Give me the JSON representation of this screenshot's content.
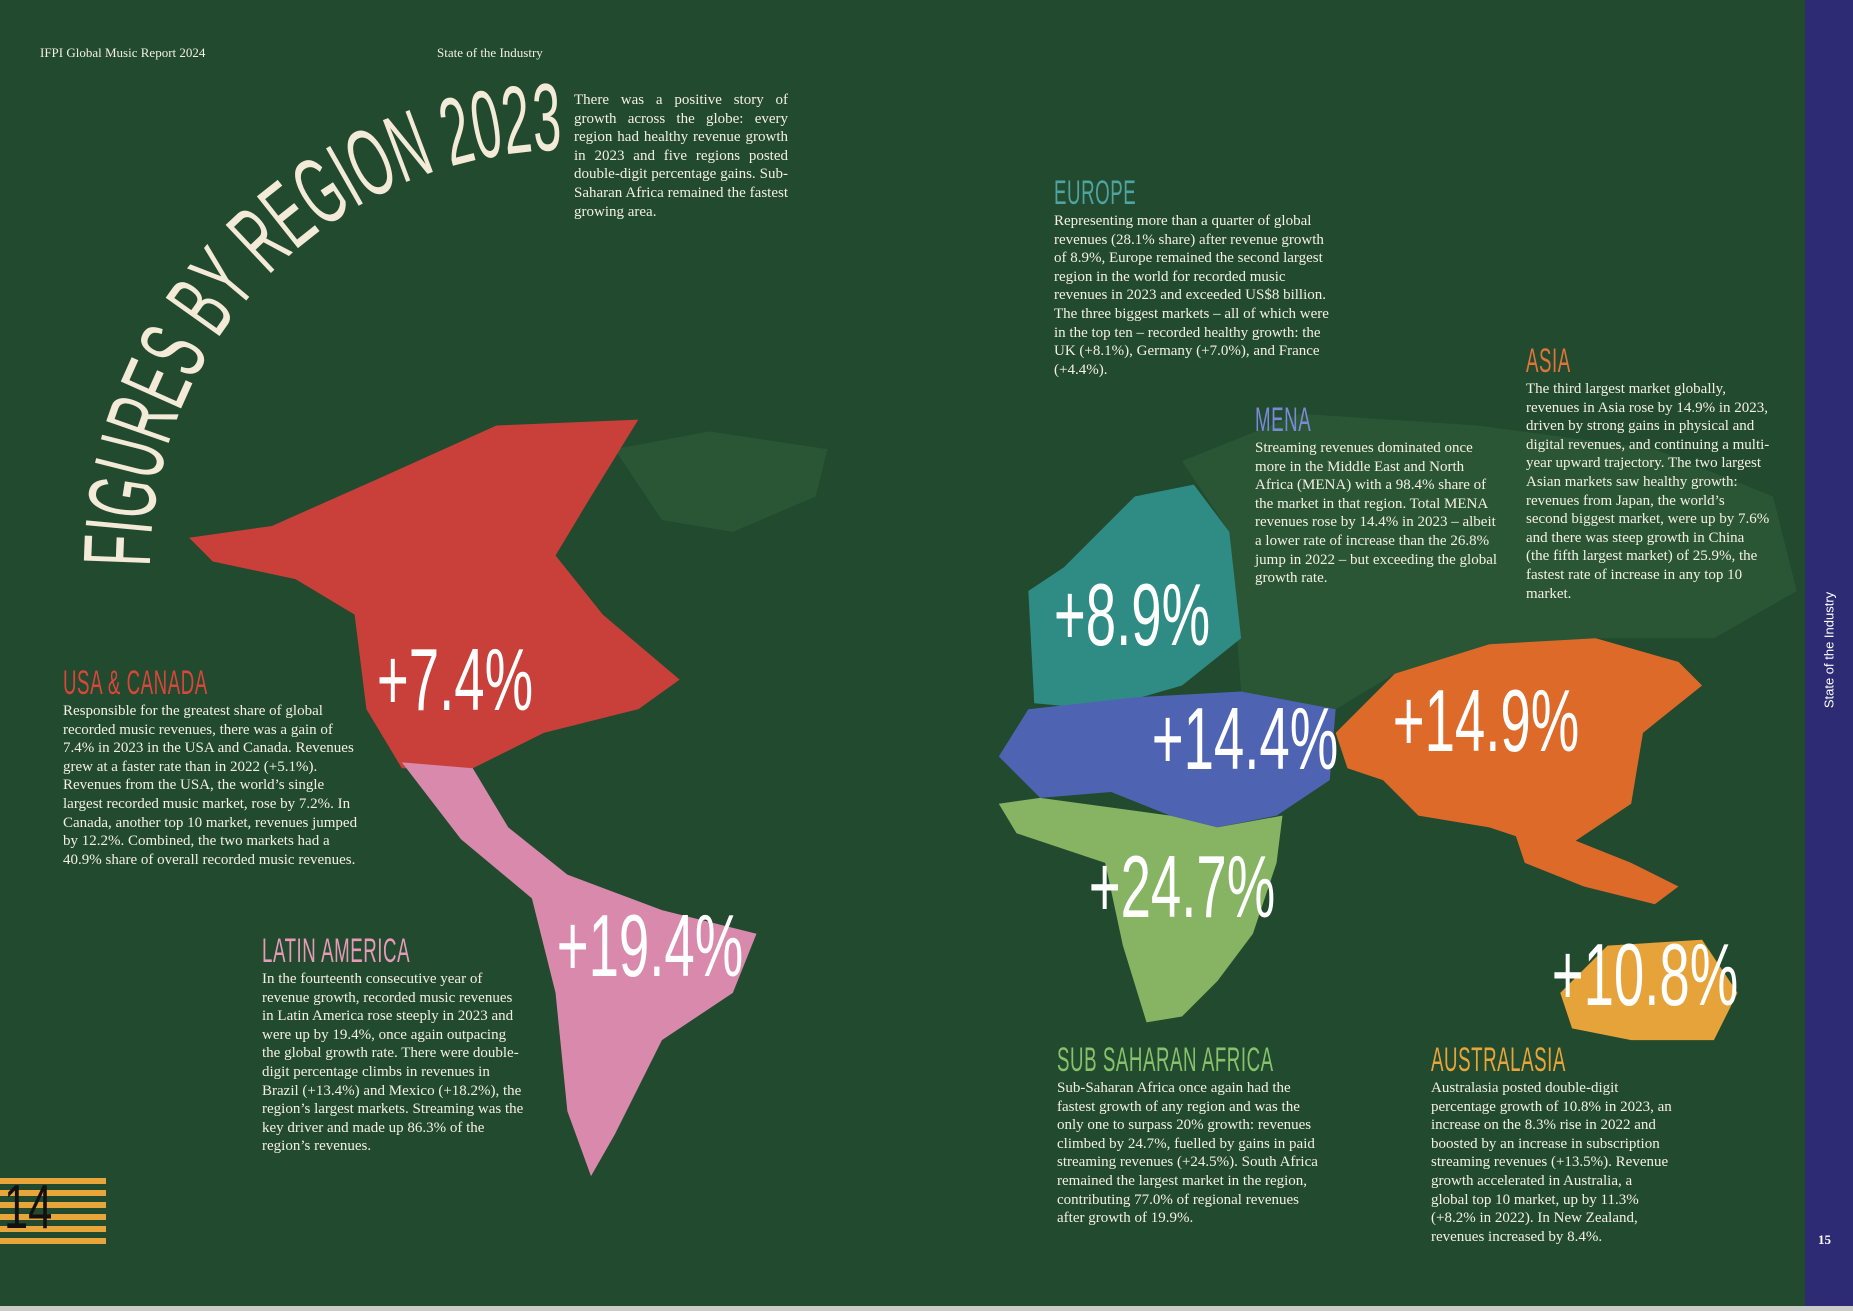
{
  "header": {
    "left": "IFPI Global Music Report 2024",
    "center": "State of the Industry"
  },
  "title": "FIGURES BY REGION 2023",
  "intro": "There was a positive story of growth across the globe: every region had healthy revenue growth in 2023 and five regions posted double-digit percentage gains. Sub-Saharan Africa remained the fastest growing area.",
  "regions": [
    {
      "name": "USA & CANADA",
      "growth": "+7.4%",
      "color": "#d9463a",
      "text": "Responsible for the greatest share of global recorded music revenues, there was a gain of 7.4% in 2023 in the USA and Canada. Revenues grew at a faster rate than in 2022 (+5.1%). Revenues from the USA, the world’s single largest recorded music market, rose by 7.2%. In Canada, another top 10 market, revenues jumped by 12.2%. Combined, the two markets had a 40.9% share of overall recorded music revenues."
    },
    {
      "name": "LATIN AMERICA",
      "growth": "+19.4%",
      "color": "#e59bb8",
      "text": "In the fourteenth consecutive year of revenue growth, recorded music revenues in Latin America rose steeply in 2023 and were up by 19.4%, once again outpacing the global growth rate. There were double-digit percentage climbs in revenues in Brazil (+13.4%) and Mexico (+18.2%), the region’s largest markets. Streaming was the key driver and made up 86.3% of the region’s revenues."
    },
    {
      "name": "EUROPE",
      "growth": "+8.9%",
      "color": "#4fa3a0",
      "text": "Representing more than a quarter of global revenues (28.1% share) after revenue growth of 8.9%, Europe remained the second largest region in the world for recorded music revenues in 2023 and exceeded US$8 billion. The three biggest markets – all of which were in the top ten – recorded healthy growth: the UK (+8.1%), Germany (+7.0%), and France (+4.4%)."
    },
    {
      "name": "MENA",
      "growth": "+14.4%",
      "color": "#7b8ad6",
      "text": "Streaming revenues dominated once more in the Middle East and North Africa (MENA) with a 98.4% share of the market in that region. Total MENA revenues rose by 14.4% in 2023 – albeit a lower rate of increase than the 26.8% jump in 2022 – but exceeding the global growth rate."
    },
    {
      "name": "ASIA",
      "growth": "+14.9%",
      "color": "#e0743a",
      "text": "The third largest market globally, revenues in Asia rose by 14.9% in 2023, driven by strong gains in physical and digital revenues, and continuing a multi-year upward trajectory. The two largest Asian markets saw healthy growth: revenues from Japan, the world’s second biggest market, were up by 7.6% and there was steep growth in China (the fifth largest market) of 25.9%, the fastest rate of increase in any top 10 market."
    },
    {
      "name": "SUB SAHARAN AFRICA",
      "growth": "+24.7%",
      "color": "#8bc06b",
      "text": "Sub-Saharan Africa once again had the fastest growth of any region and was the only one to surpass 20% growth: revenues climbed by 24.7%, fuelled by gains in paid streaming revenues (+24.5%). South Africa remained the largest market in the region, contributing 77.0% of regional revenues after growth of 19.9%."
    },
    {
      "name": "AUSTRALASIA",
      "growth": "+10.8%",
      "color": "#e8a53a",
      "text": "Australasia posted double-digit percentage growth of 10.8% in 2023, an increase on the 8.3% rise in 2022 and boosted by an increase in subscription streaming revenues (+13.5%). Revenue growth accelerated in Australia, a global top 10 market, up by 11.3% (+8.2% in 2022). In New Zealand, revenues increased by 8.4%."
    }
  ],
  "sidebar": "State of the Industry",
  "page_left": "14",
  "page_right": "15"
}
